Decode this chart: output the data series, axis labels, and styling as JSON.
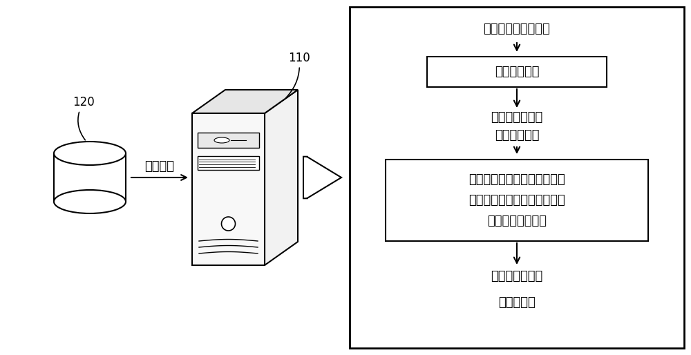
{
  "bg_color": "#ffffff",
  "label_120": "120",
  "label_110": "110",
  "arrow_label": "目标对象",
  "box1_text": "目标哈希模型",
  "text_top": "目标对象的目标特征",
  "text_mid1_line1": "目标对象对应的",
  "text_mid1_line2": "待压缩哈希码",
  "box2_line1": "基于适用于目标哈希码的低效",
  "box2_line2": "哈希位索引，去除待压缩哈希",
  "box2_line3": "码中的低效哈希位",
  "text_bottom_line1": "目标对象对应的",
  "text_bottom_line2": "压缩哈希码",
  "font_size_label": 12,
  "font_size_text": 13,
  "font_size_box": 13
}
